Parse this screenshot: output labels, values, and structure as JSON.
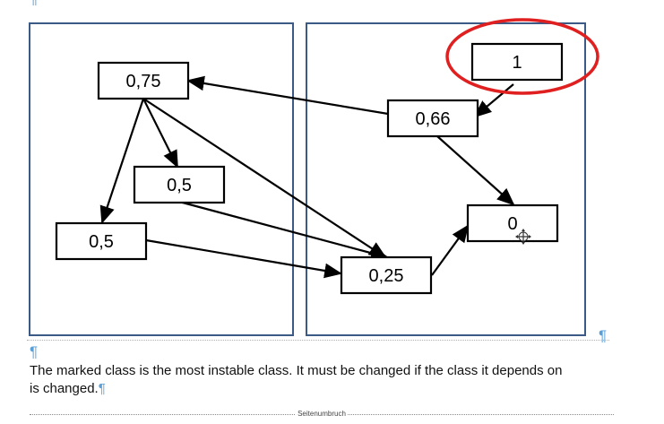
{
  "diagram": {
    "nodes": {
      "n075": "0,75",
      "n066": "0,66",
      "n1": "1",
      "n05a": "0,5",
      "n05b": "0,5",
      "n025": "0,25",
      "n0": "0"
    },
    "highlight": {
      "node": "1",
      "color": "#e02020"
    },
    "edges": [
      {
        "from": "0,66",
        "to": "0,75"
      },
      {
        "from": "1",
        "to": "0,66"
      },
      {
        "from": "0,66",
        "to": "0"
      },
      {
        "from": "0,75",
        "to": "0,5"
      },
      {
        "from": "0,75",
        "to": "0,5"
      },
      {
        "from": "0,75",
        "to": "0,25"
      },
      {
        "from": "0,5",
        "to": "0,25"
      },
      {
        "from": "0,5",
        "to": "0,25"
      },
      {
        "from": "0,25",
        "to": "0"
      }
    ],
    "frame_color": "#3b5a86",
    "cursor": "move-cursor-icon"
  },
  "text": {
    "paragraph": "The marked class is the most instable class. It must be changed if the class it depends on is changed.",
    "pilcrow": "¶",
    "page_break_label": "Seitenumbruch"
  }
}
